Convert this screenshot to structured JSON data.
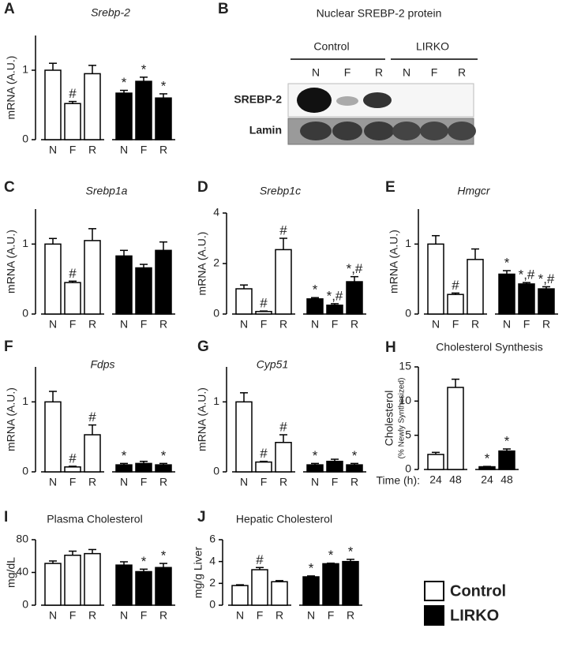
{
  "chart_data": [
    {
      "type": "bar",
      "panel": "A",
      "title": "Srebp-2",
      "title_italic": true,
      "ylabel": "mRNA (A.U.)",
      "categories": [
        "N",
        "F",
        "R",
        "N",
        "F",
        "R"
      ],
      "values": [
        1.0,
        0.52,
        0.95,
        0.67,
        0.84,
        0.6
      ],
      "errors": [
        0.1,
        0.03,
        0.12,
        0.04,
        0.06,
        0.06
      ],
      "annotations": [
        null,
        "#",
        null,
        "*",
        "*",
        "*"
      ],
      "colors": [
        "#ffffff",
        "#ffffff",
        "#ffffff",
        "#000000",
        "#000000",
        "#000000"
      ],
      "ylim": [
        0,
        1.5
      ],
      "yticks": [
        0,
        1
      ]
    },
    {
      "type": "bar",
      "panel": "C",
      "title": "Srebp1a",
      "title_italic": true,
      "ylabel": "mRNA (A.U.)",
      "categories": [
        "N",
        "F",
        "R",
        "N",
        "F",
        "R"
      ],
      "values": [
        1.0,
        0.45,
        1.05,
        0.83,
        0.66,
        0.91
      ],
      "errors": [
        0.08,
        0.02,
        0.17,
        0.08,
        0.05,
        0.12
      ],
      "annotations": [
        null,
        "#",
        null,
        null,
        null,
        null
      ],
      "colors": [
        "#ffffff",
        "#ffffff",
        "#ffffff",
        "#000000",
        "#000000",
        "#000000"
      ],
      "ylim": [
        0,
        1.5
      ],
      "yticks": [
        0,
        1
      ]
    },
    {
      "type": "bar",
      "panel": "D",
      "title": "Srebp1c",
      "title_italic": true,
      "ylabel": "mRNA (A.U.)",
      "categories": [
        "N",
        "F",
        "R",
        "N",
        "F",
        "R"
      ],
      "values": [
        1.0,
        0.1,
        2.55,
        0.6,
        0.35,
        1.28
      ],
      "errors": [
        0.15,
        0.02,
        0.45,
        0.05,
        0.06,
        0.2
      ],
      "annotations": [
        null,
        "#",
        "#",
        "*",
        "*,#",
        "*,#"
      ],
      "colors": [
        "#ffffff",
        "#ffffff",
        "#ffffff",
        "#000000",
        "#000000",
        "#000000"
      ],
      "ylim": [
        0,
        4
      ],
      "yticks": [
        0,
        2,
        4
      ]
    },
    {
      "type": "bar",
      "panel": "E",
      "title": "Hmgcr",
      "title_italic": true,
      "ylabel": "mRNA (A.U.)",
      "categories": [
        "N",
        "F",
        "R",
        "N",
        "F",
        "R"
      ],
      "values": [
        1.0,
        0.28,
        0.78,
        0.57,
        0.43,
        0.36
      ],
      "errors": [
        0.12,
        0.02,
        0.15,
        0.05,
        0.02,
        0.03
      ],
      "annotations": [
        null,
        "#",
        null,
        "*",
        "*,#",
        "*,#"
      ],
      "colors": [
        "#ffffff",
        "#ffffff",
        "#ffffff",
        "#000000",
        "#000000",
        "#000000"
      ],
      "ylim": [
        0,
        1.5
      ],
      "yticks": [
        0,
        1
      ]
    },
    {
      "type": "bar",
      "panel": "F",
      "title": "Fdps",
      "title_italic": true,
      "ylabel": "mRNA (A.U.)",
      "categories": [
        "N",
        "F",
        "R",
        "N",
        "F",
        "R"
      ],
      "values": [
        1.0,
        0.07,
        0.53,
        0.1,
        0.12,
        0.1
      ],
      "errors": [
        0.15,
        0.01,
        0.14,
        0.02,
        0.03,
        0.02
      ],
      "annotations": [
        null,
        "#",
        "#",
        "*",
        null,
        "*"
      ],
      "colors": [
        "#ffffff",
        "#ffffff",
        "#ffffff",
        "#000000",
        "#000000",
        "#000000"
      ],
      "ylim": [
        0,
        1.5
      ],
      "yticks": [
        0,
        1
      ]
    },
    {
      "type": "bar",
      "panel": "G",
      "title": "Cyp51",
      "title_italic": true,
      "ylabel": "mRNA (A.U.)",
      "categories": [
        "N",
        "F",
        "R",
        "N",
        "F",
        "R"
      ],
      "values": [
        1.0,
        0.14,
        0.42,
        0.1,
        0.15,
        0.1
      ],
      "errors": [
        0.13,
        0.01,
        0.11,
        0.02,
        0.03,
        0.02
      ],
      "annotations": [
        null,
        "#",
        "#",
        "*",
        null,
        "*"
      ],
      "colors": [
        "#ffffff",
        "#ffffff",
        "#ffffff",
        "#000000",
        "#000000",
        "#000000"
      ],
      "ylim": [
        0,
        1.5
      ],
      "yticks": [
        0,
        1
      ]
    },
    {
      "type": "bar",
      "panel": "H",
      "title": "Cholesterol Synthesis",
      "title_italic": false,
      "ylabel": "Cholesterol",
      "ylabel_sub": "(% Newly Synthesized)",
      "xlabel": "Time (h):",
      "categories": [
        "24",
        "48",
        "24",
        "48"
      ],
      "values": [
        2.2,
        12,
        0.4,
        2.7
      ],
      "errors": [
        0.3,
        1.2,
        0.05,
        0.3
      ],
      "annotations": [
        null,
        null,
        "*",
        "*"
      ],
      "colors": [
        "#ffffff",
        "#ffffff",
        "#000000",
        "#000000"
      ],
      "ylim": [
        0,
        15
      ],
      "yticks": [
        0,
        5,
        10,
        15
      ]
    },
    {
      "type": "bar",
      "panel": "I",
      "title": "Plasma Cholesterol",
      "title_italic": false,
      "ylabel": "mg/dL",
      "categories": [
        "N",
        "F",
        "R",
        "N",
        "F",
        "R"
      ],
      "values": [
        51,
        61,
        63,
        49,
        41,
        46
      ],
      "errors": [
        3,
        5,
        5,
        4,
        3,
        5
      ],
      "annotations": [
        null,
        null,
        null,
        null,
        "*",
        "*"
      ],
      "colors": [
        "#ffffff",
        "#ffffff",
        "#ffffff",
        "#000000",
        "#000000",
        "#000000"
      ],
      "ylim": [
        0,
        80
      ],
      "yticks": [
        0,
        40,
        80
      ]
    },
    {
      "type": "bar",
      "panel": "J",
      "title": "Hepatic Cholesterol",
      "title_italic": false,
      "ylabel": "mg/g Liver",
      "categories": [
        "N",
        "F",
        "R",
        "N",
        "F",
        "R"
      ],
      "values": [
        1.8,
        3.25,
        2.15,
        2.6,
        3.8,
        4.0
      ],
      "errors": [
        0.07,
        0.2,
        0.1,
        0.08,
        0.05,
        0.2
      ],
      "annotations": [
        null,
        "#",
        null,
        "*",
        "*",
        "*"
      ],
      "colors": [
        "#ffffff",
        "#ffffff",
        "#ffffff",
        "#000000",
        "#000000",
        "#000000"
      ],
      "ylim": [
        0,
        6
      ],
      "yticks": [
        0,
        2,
        4,
        6
      ]
    }
  ],
  "blot": {
    "panel": "B",
    "title": "Nuclear SREBP-2 protein",
    "groups": [
      "Control",
      "LIRKO"
    ],
    "lanes": [
      "N",
      "F",
      "R",
      "N",
      "F",
      "R"
    ],
    "rows": [
      "SREBP-2",
      "Lamin"
    ]
  },
  "legend": [
    {
      "label": "Control",
      "color": "#ffffff"
    },
    {
      "label": "LIRKO",
      "color": "#000000"
    }
  ]
}
